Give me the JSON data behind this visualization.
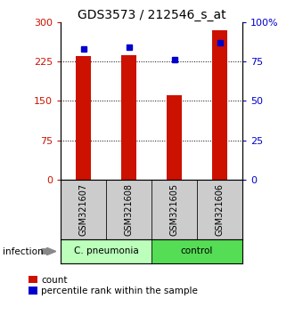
{
  "title": "GDS3573 / 212546_s_at",
  "samples": [
    "GSM321607",
    "GSM321608",
    "GSM321605",
    "GSM321606"
  ],
  "counts": [
    235,
    237,
    160,
    285
  ],
  "percentiles": [
    83,
    84,
    76,
    87
  ],
  "left_ylim": [
    0,
    300
  ],
  "right_ylim": [
    0,
    100
  ],
  "left_yticks": [
    0,
    75,
    150,
    225,
    300
  ],
  "right_yticks": [
    0,
    25,
    50,
    75,
    100
  ],
  "left_yticklabels": [
    "0",
    "75",
    "150",
    "225",
    "300"
  ],
  "right_yticklabels": [
    "0",
    "25",
    "50",
    "75",
    "100%"
  ],
  "bar_color": "#cc1100",
  "percentile_color": "#0000cc",
  "group1_label": "C. pneumonia",
  "group2_label": "control",
  "group1_color": "#bbffbb",
  "group2_color": "#55dd55",
  "infection_label": "infection",
  "legend_count": "count",
  "legend_percentile": "percentile rank within the sample",
  "bar_width": 0.35,
  "background_color": "#ffffff",
  "sample_box_color": "#cccccc",
  "title_fontsize": 10,
  "tick_fontsize": 8,
  "label_fontsize": 8,
  "grid_yticks": [
    75,
    150,
    225
  ]
}
